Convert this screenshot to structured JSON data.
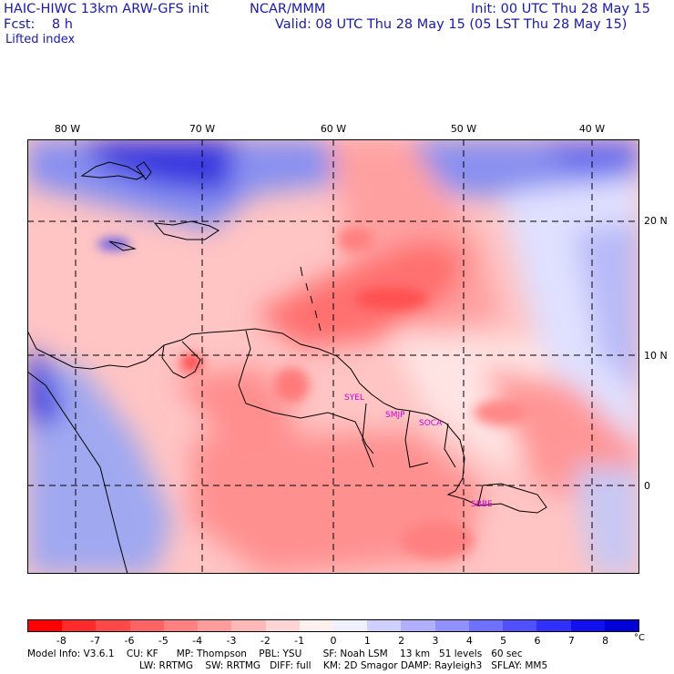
{
  "header": {
    "model": "HAIC-HIWC 13km ARW-GFS init",
    "org": "NCAR/MMM",
    "init": "Init: 00 UTC Thu 28 May 15",
    "fcst": "Fcst:    8 h",
    "valid": "Valid: 08 UTC Thu 28 May 15 (05 LST Thu 28 May 15)",
    "field": "Lifted index"
  },
  "map": {
    "lon_labels": [
      "80 W",
      "70 W",
      "60 W",
      "50 W",
      "40 W"
    ],
    "lat_labels": [
      "20 N",
      "10 N",
      "0"
    ],
    "stations": [
      "SYEL",
      "SMJP",
      "SOCA",
      "SBBE"
    ]
  },
  "colorbar": {
    "ticks": [
      "-8",
      "-7",
      "-6",
      "-5",
      "-4",
      "-3",
      "-2",
      "-1",
      "0",
      "1",
      "2",
      "3",
      "4",
      "5",
      "6",
      "7",
      "8"
    ],
    "unit": "°C",
    "colors": [
      "#ff0000",
      "#ff2a2a",
      "#ff4848",
      "#ff6464",
      "#ff8080",
      "#ff9c9c",
      "#ffb8b8",
      "#ffd4d4",
      "#fff0f0",
      "#f0f0ff",
      "#d0d0ff",
      "#b0b0ff",
      "#9090ff",
      "#7070ff",
      "#5050ff",
      "#3030ff",
      "#1010f0",
      "#0000d8"
    ]
  },
  "footer": {
    "line1": "Model Info: V3.6.1    CU: KF      MP: Thompson    PBL: YSU       SF: Noah LSM    13 km   51 levels   60 sec",
    "line2": "LW: RRTMG    SW: RRTMG   DIFF: full    KM: 2D Smagor DAMP: Rayleigh3   SFLAY: MM5"
  }
}
